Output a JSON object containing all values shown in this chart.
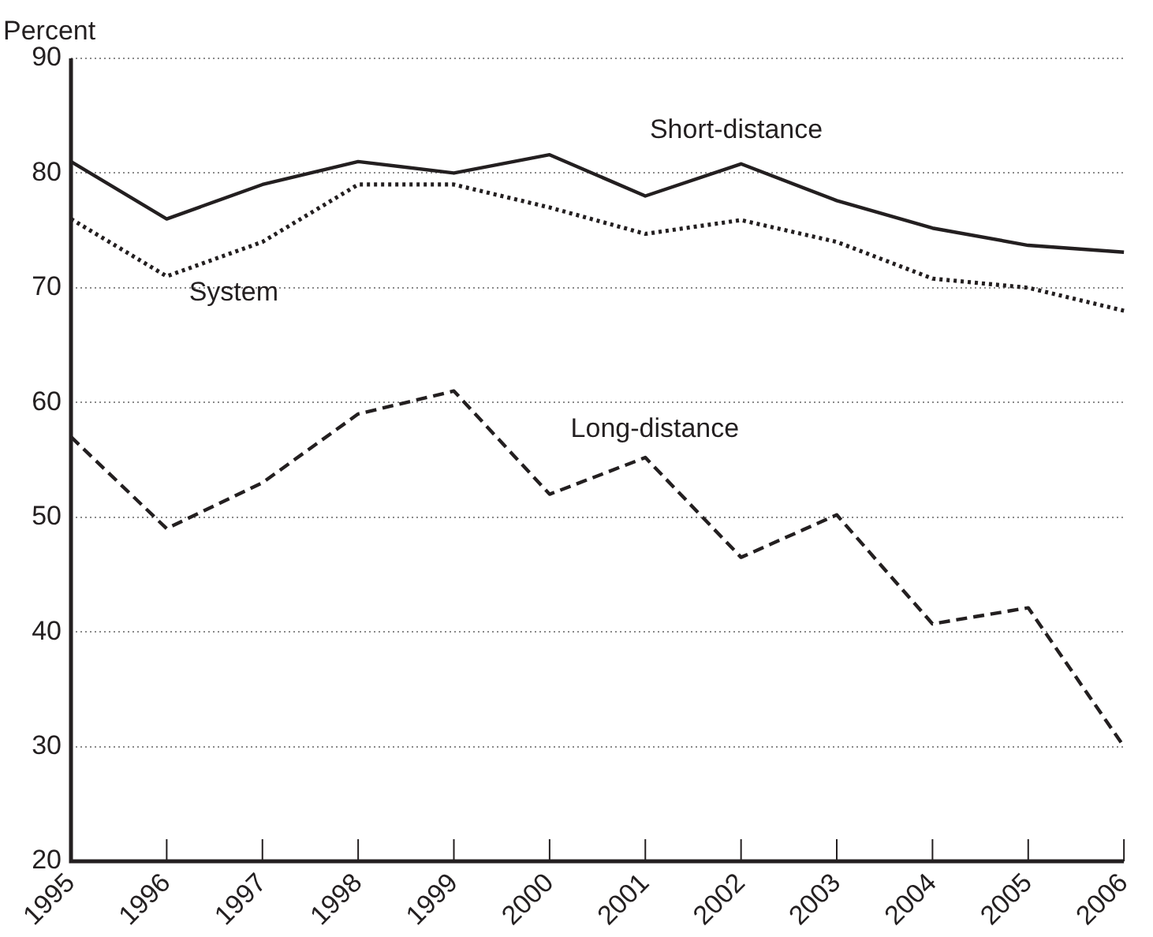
{
  "chart_data": {
    "type": "line",
    "ylabel": "Percent",
    "categories": [
      "1995",
      "1996",
      "1997",
      "1998",
      "1999",
      "2000",
      "2001",
      "2002",
      "2003",
      "2004",
      "2005",
      "2006"
    ],
    "series": [
      {
        "name": "Short-distance",
        "color": "#231f20",
        "line_style": "solid",
        "values": [
          81,
          76,
          79,
          81,
          80,
          81.6,
          78,
          80.8,
          77.6,
          75.2,
          73.7,
          73.1
        ]
      },
      {
        "name": "System",
        "color": "#231f20",
        "line_style": "dotted",
        "values": [
          76,
          71,
          74,
          79,
          79,
          77,
          74.7,
          75.9,
          74,
          70.8,
          70,
          68
        ]
      },
      {
        "name": "Long-distance",
        "color": "#231f20",
        "line_style": "dashed",
        "values": [
          57,
          49,
          53,
          59,
          61,
          52,
          55.2,
          46.5,
          50.2,
          40.7,
          42.1,
          30
        ]
      }
    ],
    "ylim": [
      20,
      90
    ],
    "yticks": [
      20,
      30,
      40,
      50,
      60,
      70,
      80,
      90
    ],
    "grid": "y",
    "legend": false,
    "marker": "none"
  }
}
